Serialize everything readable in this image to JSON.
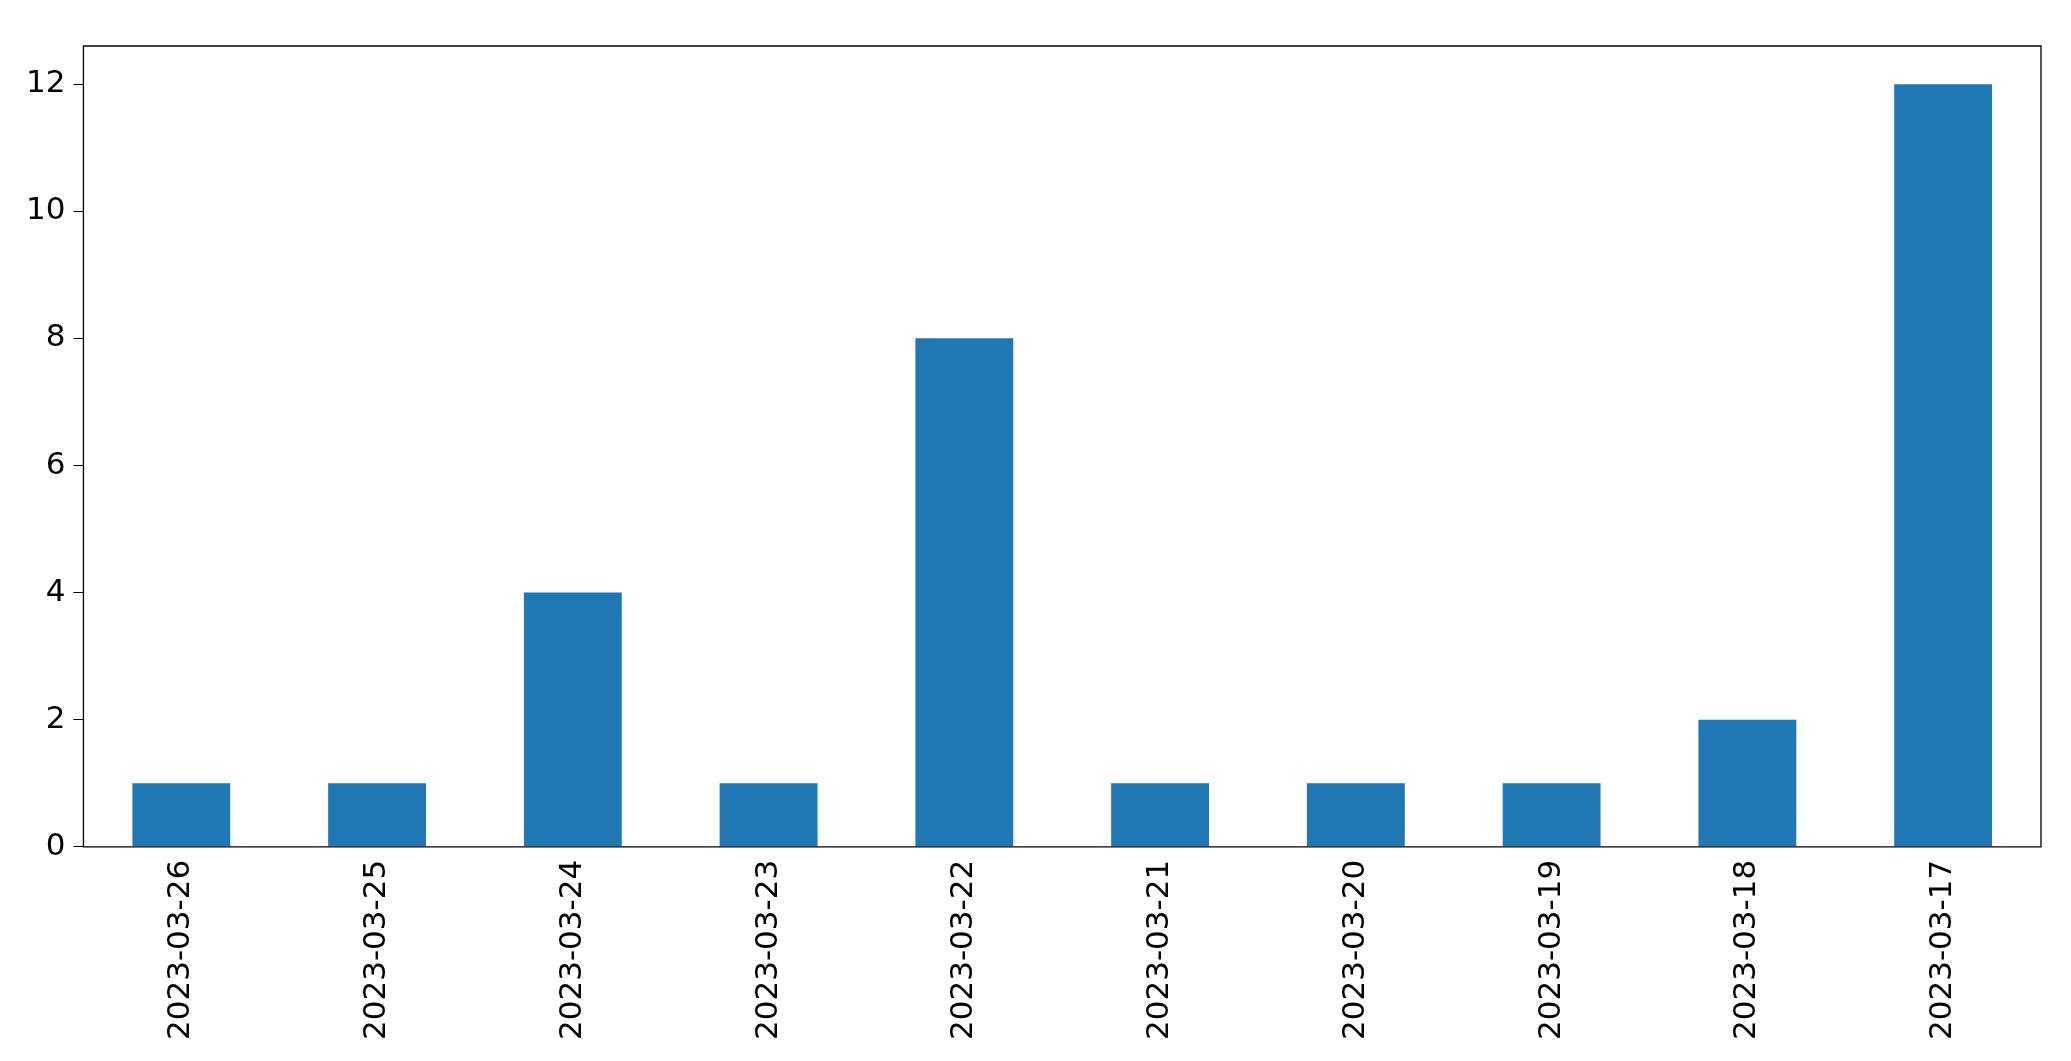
{
  "chart_data": {
    "type": "bar",
    "categories": [
      "2023-03-26",
      "2023-03-25",
      "2023-03-24",
      "2023-03-23",
      "2023-03-22",
      "2023-03-21",
      "2023-03-20",
      "2023-03-19",
      "2023-03-18",
      "2023-03-17"
    ],
    "values": [
      1,
      1,
      4,
      1,
      8,
      1,
      1,
      1,
      2,
      12
    ],
    "color": "#1f77b4",
    "ylim": [
      0,
      12.6
    ],
    "yticks": [
      0,
      2,
      4,
      6,
      8,
      10,
      12
    ],
    "grid": false,
    "legend": false
  }
}
